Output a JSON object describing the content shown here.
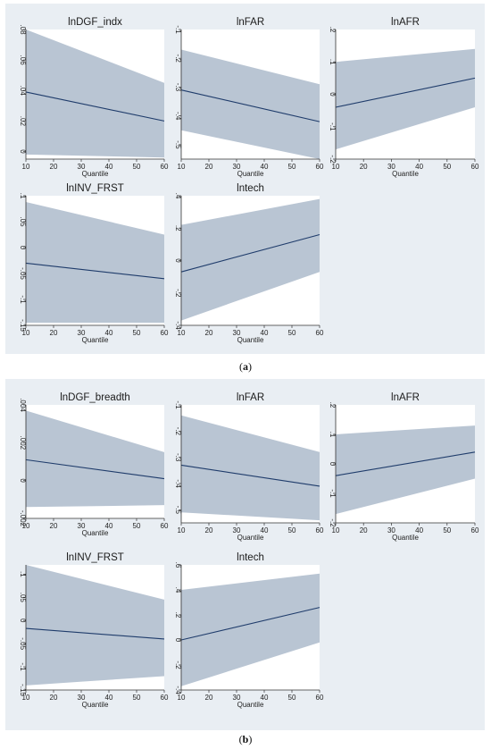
{
  "figures": [
    {
      "label": "a"
    },
    {
      "label": "b"
    }
  ],
  "colors": {
    "panel_bg": "#e9eef3",
    "band": "#b9c5d3",
    "line": "#1f3c6b"
  },
  "chart_data": [
    {
      "figure": "a",
      "type": "line",
      "title": "lnDGF_indx",
      "xlabel": "Quantile",
      "xlim": [
        10,
        60
      ],
      "xticks": [
        10,
        20,
        30,
        40,
        50,
        60
      ],
      "ylim": [
        -0.005,
        0.08
      ],
      "yticks": [
        0,
        0.02,
        0.04,
        0.06,
        0.08
      ],
      "ytick_labels": [
        "0",
        ".02",
        ".04",
        ".06",
        ".08"
      ],
      "x": [
        10,
        60
      ],
      "estimate": [
        0.039,
        0.02
      ],
      "ci_lower": [
        -0.002,
        -0.004
      ],
      "ci_upper": [
        0.08,
        0.045
      ]
    },
    {
      "figure": "a",
      "type": "line",
      "title": "lnFAR",
      "xlabel": "Quantile",
      "xlim": [
        10,
        60
      ],
      "xticks": [
        10,
        20,
        30,
        40,
        50,
        60
      ],
      "ylim": [
        -0.55,
        -0.1
      ],
      "yticks": [
        -0.5,
        -0.4,
        -0.3,
        -0.2,
        -0.1
      ],
      "ytick_labels": [
        "-.5",
        "-.4",
        "-.3",
        "-.2",
        "-.1"
      ],
      "x": [
        10,
        60
      ],
      "estimate": [
        -0.31,
        -0.42
      ],
      "ci_lower": [
        -0.45,
        -0.55
      ],
      "ci_upper": [
        -0.17,
        -0.29
      ]
    },
    {
      "figure": "a",
      "type": "line",
      "title": "lnAFR",
      "xlabel": "Quantile",
      "xlim": [
        10,
        60
      ],
      "xticks": [
        10,
        20,
        30,
        40,
        50,
        60
      ],
      "ylim": [
        -0.2,
        0.2
      ],
      "yticks": [
        -0.2,
        -0.1,
        0,
        0.1,
        0.2
      ],
      "ytick_labels": [
        "-.2",
        "-.1",
        "0",
        ".1",
        ".2"
      ],
      "x": [
        10,
        60
      ],
      "estimate": [
        -0.04,
        0.05
      ],
      "ci_lower": [
        -0.17,
        -0.04
      ],
      "ci_upper": [
        0.1,
        0.14
      ]
    },
    {
      "figure": "a",
      "type": "line",
      "title": "lnINV_FRST",
      "xlabel": "Quantile",
      "xlim": [
        10,
        60
      ],
      "xticks": [
        10,
        20,
        30,
        40,
        50,
        60
      ],
      "ylim": [
        -0.15,
        0.1
      ],
      "yticks": [
        -0.15,
        -0.1,
        -0.05,
        0,
        0.05,
        0.1
      ],
      "ytick_labels": [
        "-.15",
        "-.1",
        "-.05",
        "0",
        ".05",
        ".1"
      ],
      "x": [
        10,
        60
      ],
      "estimate": [
        -0.03,
        -0.06
      ],
      "ci_lower": [
        -0.145,
        -0.145
      ],
      "ci_upper": [
        0.088,
        0.025
      ]
    },
    {
      "figure": "a",
      "type": "line",
      "title": "lntech",
      "xlabel": "Quantile",
      "xlim": [
        10,
        60
      ],
      "xticks": [
        10,
        20,
        30,
        40,
        50,
        60
      ],
      "ylim": [
        -0.4,
        0.4
      ],
      "yticks": [
        -0.4,
        -0.2,
        0,
        0.2,
        0.4
      ],
      "ytick_labels": [
        "-.4",
        "-.2",
        "0",
        ".2",
        ".4"
      ],
      "x": [
        10,
        60
      ],
      "estimate": [
        -0.07,
        0.16
      ],
      "ci_lower": [
        -0.37,
        -0.07
      ],
      "ci_upper": [
        0.22,
        0.38
      ]
    },
    {
      "figure": "b",
      "type": "line",
      "title": "lnDGF_breadth",
      "xlabel": "Quantile",
      "xlim": [
        10,
        60
      ],
      "xticks": [
        10,
        20,
        30,
        40,
        50,
        60
      ],
      "ylim": [
        -0.002,
        0.004
      ],
      "yticks": [
        -0.002,
        0,
        0.002,
        0.004
      ],
      "ytick_labels": [
        "-.002",
        "0",
        ".002",
        ".004"
      ],
      "x": [
        10,
        60
      ],
      "estimate": [
        0.0011,
        0.0001
      ],
      "ci_lower": [
        -0.0014,
        -0.0013
      ],
      "ci_upper": [
        0.0037,
        0.0015
      ]
    },
    {
      "figure": "b",
      "type": "line",
      "title": "lnFAR",
      "xlabel": "Quantile",
      "xlim": [
        10,
        60
      ],
      "xticks": [
        10,
        20,
        30,
        40,
        50,
        60
      ],
      "ylim": [
        -0.55,
        -0.1
      ],
      "yticks": [
        -0.5,
        -0.4,
        -0.3,
        -0.2,
        -0.1
      ],
      "ytick_labels": [
        "-.5",
        "-.4",
        "-.3",
        "-.2",
        "-.1"
      ],
      "x": [
        10,
        60
      ],
      "estimate": [
        -0.33,
        -0.41
      ],
      "ci_lower": [
        -0.51,
        -0.54
      ],
      "ci_upper": [
        -0.14,
        -0.28
      ]
    },
    {
      "figure": "b",
      "type": "line",
      "title": "lnAFR",
      "xlabel": "Quantile",
      "xlim": [
        10,
        60
      ],
      "xticks": [
        10,
        20,
        30,
        40,
        50,
        60
      ],
      "ylim": [
        -0.2,
        0.2
      ],
      "yticks": [
        -0.2,
        -0.1,
        0,
        0.1,
        0.2
      ],
      "ytick_labels": [
        "-.2",
        "-.1",
        "0",
        ".1",
        ".2"
      ],
      "x": [
        10,
        60
      ],
      "estimate": [
        -0.04,
        0.04
      ],
      "ci_lower": [
        -0.17,
        -0.05
      ],
      "ci_upper": [
        0.1,
        0.13
      ]
    },
    {
      "figure": "b",
      "type": "line",
      "title": "lnINV_FRST",
      "xlabel": "Quantile",
      "xlim": [
        10,
        60
      ],
      "xticks": [
        10,
        20,
        30,
        40,
        50,
        60
      ],
      "ylim": [
        -0.15,
        0.12
      ],
      "yticks": [
        -0.15,
        -0.1,
        -0.05,
        0,
        0.05,
        0.1
      ],
      "ytick_labels": [
        "-.15",
        "-.1",
        "-.05",
        "0",
        ".05",
        ".1"
      ],
      "x": [
        10,
        60
      ],
      "estimate": [
        -0.017,
        -0.04
      ],
      "ci_lower": [
        -0.14,
        -0.12
      ],
      "ci_upper": [
        0.12,
        0.045
      ]
    },
    {
      "figure": "b",
      "type": "line",
      "title": "lntech",
      "xlabel": "Quantile",
      "xlim": [
        10,
        60
      ],
      "xticks": [
        10,
        20,
        30,
        40,
        50,
        60
      ],
      "ylim": [
        -0.4,
        0.6
      ],
      "yticks": [
        -0.4,
        -0.2,
        0,
        0.2,
        0.4,
        0.6
      ],
      "ytick_labels": [
        "-.4",
        "-.2",
        "0",
        ".2",
        ".4",
        ".6"
      ],
      "x": [
        10,
        60
      ],
      "estimate": [
        0.0,
        0.26
      ],
      "ci_lower": [
        -0.37,
        -0.02
      ],
      "ci_upper": [
        0.4,
        0.53
      ]
    }
  ]
}
